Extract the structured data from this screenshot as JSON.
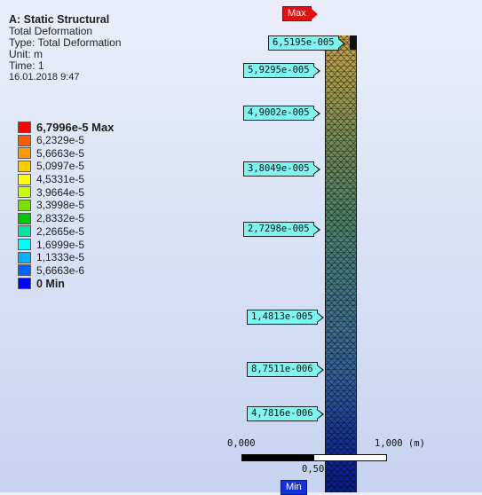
{
  "header": {
    "title": "A: Static Structural",
    "line1": "Total Deformation",
    "line2": "Type: Total Deformation",
    "line3": "Unit: m",
    "line4": "Time: 1",
    "line5": "16.01.2018 9:47"
  },
  "legend": [
    {
      "label": "6,7996e-5 Max",
      "color": "#ff0000"
    },
    {
      "label": "6,2329e-5",
      "color": "#ff5a00"
    },
    {
      "label": "5,6663e-5",
      "color": "#ff9a00"
    },
    {
      "label": "5,0997e-5",
      "color": "#ffcc00"
    },
    {
      "label": "4,5331e-5",
      "color": "#ffff00"
    },
    {
      "label": "3,9664e-5",
      "color": "#c8ff00"
    },
    {
      "label": "3,3998e-5",
      "color": "#78e000"
    },
    {
      "label": "2,8332e-5",
      "color": "#00c800"
    },
    {
      "label": "2,2665e-5",
      "color": "#00e6a0"
    },
    {
      "label": "1,6999e-5",
      "color": "#00ffff"
    },
    {
      "label": "1,1333e-5",
      "color": "#00b4ff"
    },
    {
      "label": "5,6663e-6",
      "color": "#0064ff"
    },
    {
      "label": "0 Min",
      "color": "#0000ff"
    }
  ],
  "probes": [
    "6,5195e-005",
    "5,9295e-005",
    "4,9002e-005",
    "3,8049e-005",
    "2,7298e-005",
    "1,4813e-005",
    "8,7511e-006",
    "4,7816e-006"
  ],
  "tags": {
    "max": "Max",
    "min": "Min"
  },
  "scale": {
    "left": "0,000",
    "right": "1,000 (m)",
    "mid": "0,50"
  }
}
